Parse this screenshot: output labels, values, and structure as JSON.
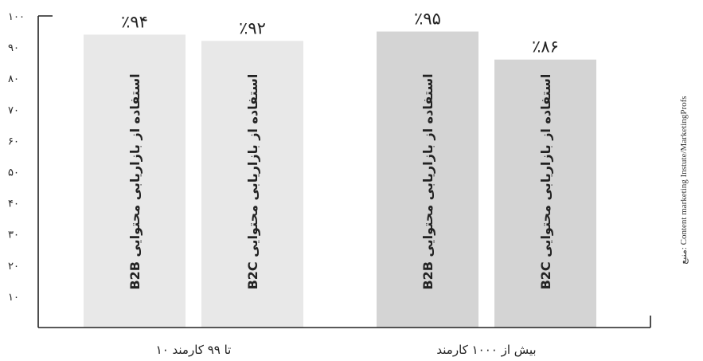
{
  "chart_data": {
    "type": "bar",
    "ylim": [
      0,
      100
    ],
    "y_ticks": [
      {
        "value": 10,
        "label": "۱۰"
      },
      {
        "value": 20,
        "label": "۲۰"
      },
      {
        "value": 30,
        "label": "۳۰"
      },
      {
        "value": 40,
        "label": "۴۰"
      },
      {
        "value": 50,
        "label": "۵۰"
      },
      {
        "value": 60,
        "label": "۶۰"
      },
      {
        "value": 70,
        "label": "۷۰"
      },
      {
        "value": 80,
        "label": "۸۰"
      },
      {
        "value": 90,
        "label": "۹۰"
      },
      {
        "value": 100,
        "label": "۱۰۰"
      }
    ],
    "groups": [
      {
        "label": "۱۰ تا ۹۹ کارمند",
        "bars": [
          {
            "value": 94,
            "value_label": "٪۹۴",
            "text": "B2B استفاده از بازاریابی محتوایی",
            "color": "#e8e8e8"
          },
          {
            "value": 92,
            "value_label": "٪۹۲",
            "text": "B2C استفاده از بازاریابی محتوایی",
            "color": "#e8e8e8"
          }
        ]
      },
      {
        "label": "بیش از ۱۰۰۰ کارمند",
        "bars": [
          {
            "value": 95,
            "value_label": "٪۹۵",
            "text": "B2B استفاده از بازاریابی محتوایی",
            "color": "#d4d4d4"
          },
          {
            "value": 86,
            "value_label": "٪۸۶",
            "text": "B2C استفاده از بازاریابی محتوایی",
            "color": "#d4d4d4"
          }
        ]
      }
    ],
    "source": "منبع: Content marketing Instute/MarketingProfs"
  }
}
